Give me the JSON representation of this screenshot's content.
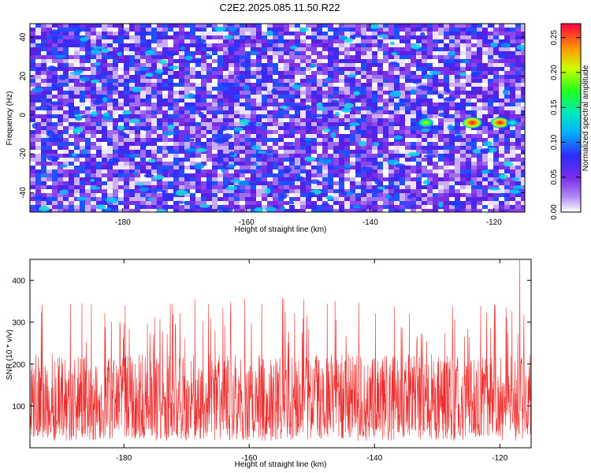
{
  "title": "C2E2.2025.085.11.50.R22",
  "colors": {
    "snr_line": "#ee2c2c",
    "background": "#ffffff",
    "axis": "#000000"
  },
  "chart_data": [
    {
      "type": "heatmap",
      "xlabel": "Height of straight line (km)",
      "ylabel": "Frequency (Hz)",
      "xlim": [
        -195,
        -115
      ],
      "ylim": [
        -50,
        47
      ],
      "x_ticks": [
        -180,
        -160,
        -140,
        -120
      ],
      "x_tick_labels": [
        "-180",
        "-160",
        "-140",
        "-120"
      ],
      "y_ticks": [
        -40,
        -20,
        0,
        20,
        40
      ],
      "y_tick_labels": [
        "-40",
        "-20",
        "0",
        "20",
        "40"
      ],
      "colorbar": {
        "label": "Normalized spectral amplitude",
        "range": [
          0,
          0.27
        ],
        "ticks": [
          0,
          0.05,
          0.1,
          0.15,
          0.2,
          0.25
        ],
        "tick_labels": [
          "0.00",
          "0.05",
          "0.10",
          "0.15",
          "0.20",
          "0.25"
        ]
      },
      "peaks": [
        {
          "x": -123.5,
          "y": -4,
          "amplitude": 0.27
        },
        {
          "x": -119,
          "y": -4,
          "amplitude": 0.24
        },
        {
          "x": -131,
          "y": -4,
          "amplitude": 0.16
        },
        {
          "x": -117,
          "y": -4,
          "amplitude": 0.13
        }
      ],
      "background_amplitude_range": [
        0.02,
        0.08
      ]
    },
    {
      "type": "line",
      "xlabel": "Height of straight line (km)",
      "ylabel": "SNR (10 * v/v)",
      "xlim": [
        -195,
        -115
      ],
      "ylim": [
        0,
        450
      ],
      "x_ticks": [
        -180,
        -160,
        -140,
        -120
      ],
      "x_tick_labels": [
        "-180",
        "-160",
        "-140",
        "-120"
      ],
      "y_ticks": [
        100,
        200,
        300,
        400
      ],
      "y_tick_labels": [
        "100",
        "200",
        "300",
        "400"
      ],
      "typical_range": [
        20,
        250
      ],
      "mean_level": 120,
      "max_value": 450,
      "max_x": -116.8
    }
  ]
}
